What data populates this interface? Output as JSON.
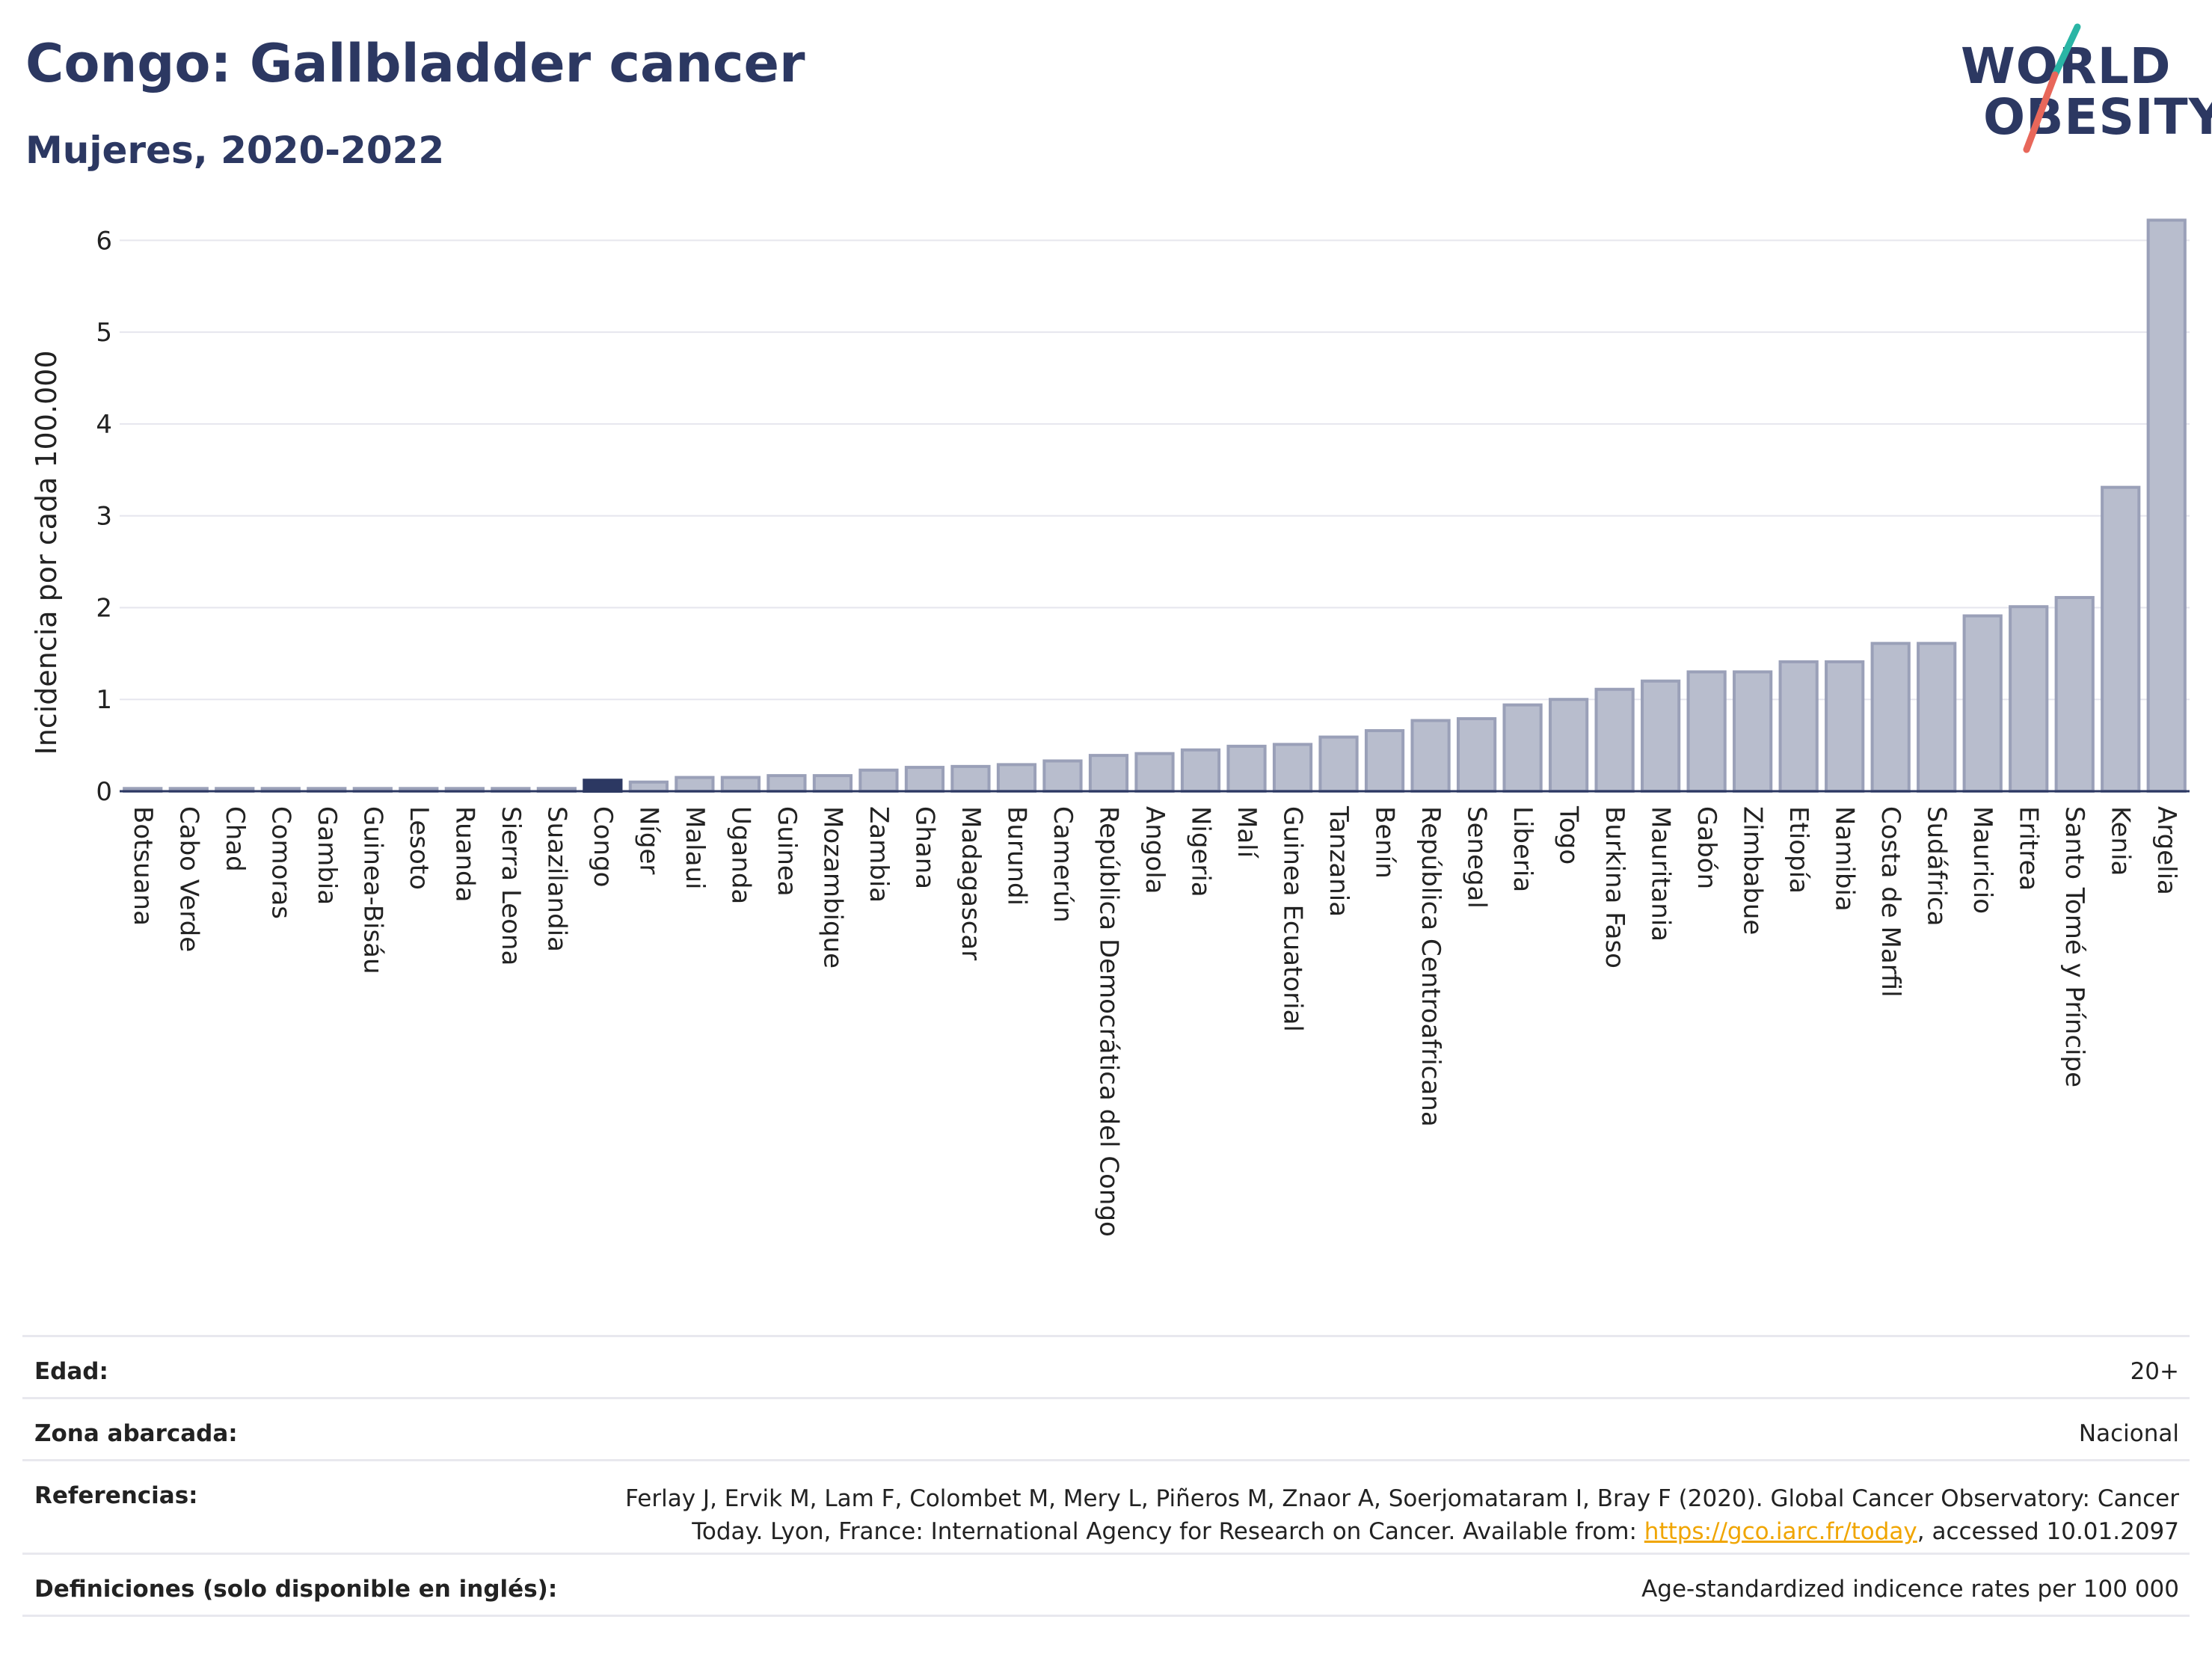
{
  "header": {
    "title": "Congo: Gallbladder cancer",
    "subtitle": "Mujeres, 2020-2022"
  },
  "logo": {
    "line1": "WORLD",
    "line2": "OBESITY",
    "colors": {
      "text": "#2c3862",
      "slash_top": "#2ab5a5",
      "slash_bottom": "#e8675a"
    }
  },
  "chart_data": {
    "type": "bar",
    "title": "Congo: Gallbladder cancer",
    "subtitle": "Mujeres, 2020-2022",
    "xlabel": "",
    "ylabel": "Incidencia por cada 100.000",
    "ylim": [
      0,
      6.5
    ],
    "yticks": [
      0,
      1,
      2,
      3,
      4,
      5,
      6
    ],
    "grid": true,
    "highlight": "Congo",
    "colors": {
      "bar": "#b8bdcd",
      "bar_border": "#9aa0b8",
      "highlight": "#2c3862",
      "grid": "#e6e6ee",
      "axis": "#2c3862"
    },
    "categories": [
      "Botsuana",
      "Cabo Verde",
      "Chad",
      "Comoras",
      "Gambia",
      "Guinea-Bisáu",
      "Lesoto",
      "Ruanda",
      "Sierra Leona",
      "Suazilandia",
      "Congo",
      "Níger",
      "Malaui",
      "Uganda",
      "Guinea",
      "Mozambique",
      "Zambia",
      "Ghana",
      "Madagascar",
      "Burundi",
      "Camerún",
      "República Democrática del Congo",
      "Angola",
      "Nigeria",
      "Malí",
      "Guinea Ecuatorial",
      "Tanzania",
      "Benín",
      "República Centroafricana",
      "Senegal",
      "Liberia",
      "Togo",
      "Burkina Faso",
      "Mauritania",
      "Gabón",
      "Zimbabue",
      "Etiopía",
      "Namibia",
      "Costa de Marfil",
      "Sudáfrica",
      "Mauricio",
      "Eritrea",
      "Santo Tomé y Príncipe",
      "Kenia",
      "Argelia"
    ],
    "values": [
      0.03,
      0.03,
      0.03,
      0.03,
      0.03,
      0.03,
      0.03,
      0.03,
      0.03,
      0.03,
      0.12,
      0.1,
      0.15,
      0.15,
      0.17,
      0.17,
      0.23,
      0.26,
      0.27,
      0.29,
      0.33,
      0.39,
      0.41,
      0.45,
      0.49,
      0.51,
      0.59,
      0.66,
      0.77,
      0.79,
      0.94,
      1.0,
      1.11,
      1.2,
      1.3,
      1.3,
      1.41,
      1.41,
      1.61,
      1.61,
      1.91,
      2.01,
      2.11,
      3.31,
      6.22
    ]
  },
  "info": {
    "age_label": "Edad:",
    "age_value": "20+",
    "area_label": "Zona abarcada:",
    "area_value": "Nacional",
    "ref_label": "Referencias:",
    "ref_line1": "Ferlay J, Ervik M, Lam F, Colombet M, Mery L, Piñeros M, Znaor A, Soerjomataram I, Bray F (2020). Global Cancer Observatory: Cancer",
    "ref_line2_pre": "Today. Lyon, France: International Agency for Research on Cancer. Available from: ",
    "ref_link": "https://gco.iarc.fr/today",
    "ref_line2_post": ", accessed 10.01.2097",
    "def_label": "Definiciones (solo disponible en inglés):",
    "def_value": "Age-standardized indicence rates per 100 000"
  }
}
